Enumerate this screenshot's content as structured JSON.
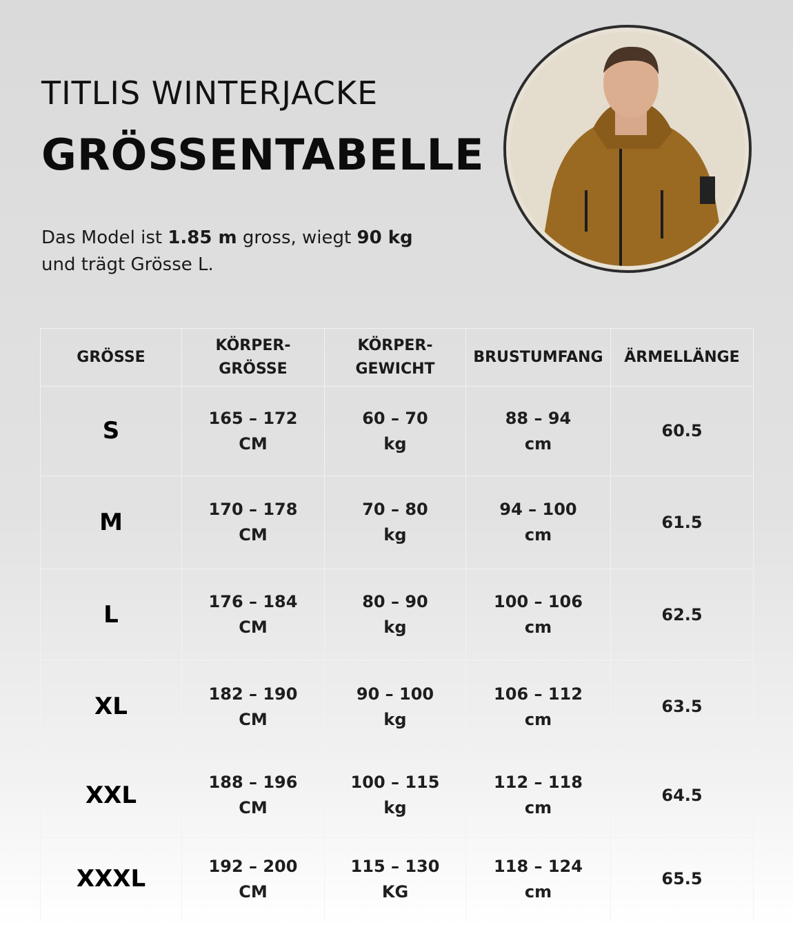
{
  "header": {
    "product": "TITLIS WINTERJACKE",
    "title": "GRÖSSENTABELLE"
  },
  "intro": {
    "part1": "Das Model ist ",
    "height": "1.85 m",
    "part2": " gross, wiegt ",
    "weight": "90 kg",
    "part3": "",
    "line2": "und trägt Grösse L."
  },
  "photo": {
    "subject": "model-in-brown-winter-jacket",
    "jacket_color": "#9a6a22"
  },
  "table": {
    "headers": [
      [
        "GRÖSSE"
      ],
      [
        "KÖRPER-",
        "GRÖSSE"
      ],
      [
        "KÖRPER-",
        "GEWICHT"
      ],
      [
        "BRUSTUMFANG"
      ],
      [
        "ÄRMELLÄNGE"
      ]
    ],
    "rows": [
      {
        "size": "S",
        "height": [
          "165 – 172",
          "CM"
        ],
        "weight": [
          "60 – 70",
          "kg"
        ],
        "chest": [
          "88 – 94",
          "cm"
        ],
        "sleeve": "60.5"
      },
      {
        "size": "M",
        "height": [
          "170 – 178",
          "CM"
        ],
        "weight": [
          "70 – 80",
          "kg"
        ],
        "chest": [
          "94 – 100",
          "cm"
        ],
        "sleeve": "61.5"
      },
      {
        "size": "L",
        "height": [
          "176 – 184",
          "CM"
        ],
        "weight": [
          "80 – 90",
          "kg"
        ],
        "chest": [
          "100 – 106",
          "cm"
        ],
        "sleeve": "62.5"
      },
      {
        "size": "XL",
        "height": [
          "182 – 190",
          "CM"
        ],
        "weight": [
          "90 – 100",
          "kg"
        ],
        "chest": [
          "106 – 112",
          "cm"
        ],
        "sleeve": "63.5"
      },
      {
        "size": "XXL",
        "height": [
          "188 – 196",
          "CM"
        ],
        "weight": [
          "100 – 115",
          "kg"
        ],
        "chest": [
          "112 – 118",
          "cm"
        ],
        "sleeve": "64.5"
      },
      {
        "size": "XXXL",
        "height": [
          "192 – 200",
          "CM"
        ],
        "weight": [
          "115 – 130",
          "KG"
        ],
        "chest": [
          "118 – 124",
          "cm"
        ],
        "sleeve": "65.5"
      }
    ]
  }
}
